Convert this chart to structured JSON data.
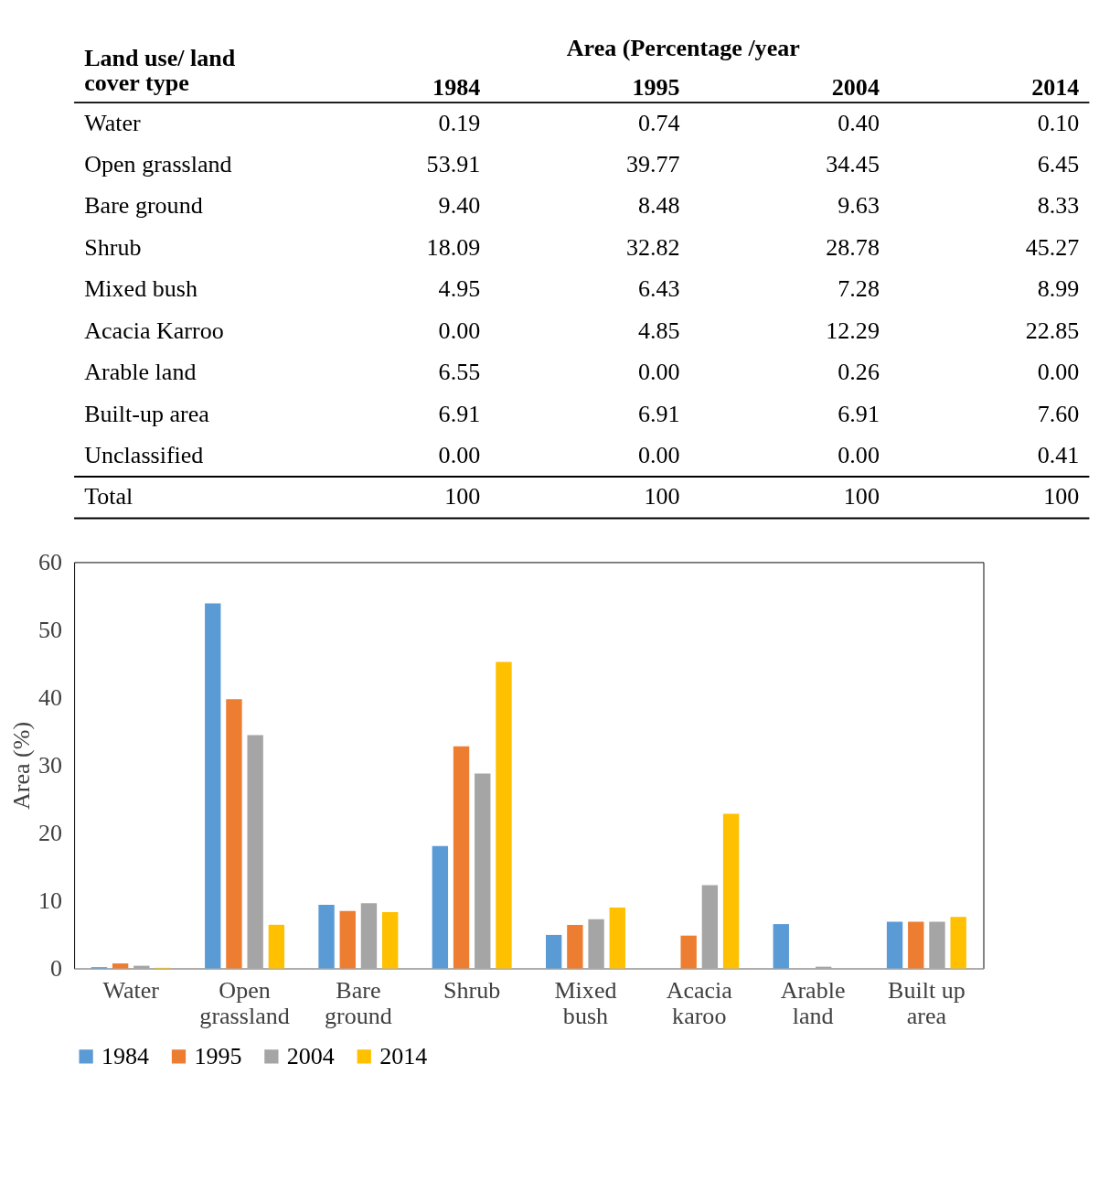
{
  "chart_data": [
    {
      "type": "other",
      "title": "Area (Percentage /year",
      "xlabel": "Land use/ land cover type",
      "categories": [
        "Water",
        "Open grassland",
        "Bare ground",
        "Shrub",
        "Mixed bush",
        "Acacia Karroo",
        "Arable land",
        "Built-up area",
        "Unclassified",
        "Total"
      ],
      "series": [
        {
          "name": "1984",
          "values": [
            0.19,
            53.91,
            9.4,
            18.09,
            4.95,
            0.0,
            6.55,
            6.91,
            0.0,
            100
          ],
          "value_labels": [
            "0.19",
            "53.91",
            "9.40",
            "18.09",
            "4.95",
            "0.00",
            "6.55",
            "6.91",
            "0.00",
            "100"
          ]
        },
        {
          "name": "1995",
          "values": [
            0.74,
            39.77,
            8.48,
            32.82,
            6.43,
            4.85,
            0.0,
            6.91,
            0.0,
            100
          ],
          "value_labels": [
            "0.74",
            "39.77",
            "8.48",
            "32.82",
            "6.43",
            "4.85",
            "0.00",
            "6.91",
            "0.00",
            "100"
          ]
        },
        {
          "name": "2004",
          "values": [
            0.4,
            34.45,
            9.63,
            28.78,
            7.28,
            12.29,
            0.26,
            6.91,
            0.0,
            100
          ],
          "value_labels": [
            "0.40",
            "34.45",
            "9.63",
            "28.78",
            "7.28",
            "12.29",
            "0.26",
            "6.91",
            "0.00",
            "100"
          ]
        },
        {
          "name": "2014",
          "values": [
            0.1,
            6.45,
            8.33,
            45.27,
            8.99,
            22.85,
            0.0,
            7.6,
            0.41,
            100
          ],
          "value_labels": [
            "0.10",
            "6.45",
            "8.33",
            "45.27",
            "8.99",
            "22.85",
            "0.00",
            "7.60",
            "0.41",
            "100"
          ]
        }
      ]
    },
    {
      "type": "bar",
      "ylabel": "Area (%)",
      "ylim": [
        0,
        60
      ],
      "yticks": [
        0,
        10,
        20,
        30,
        40,
        50,
        60
      ],
      "grid": false,
      "legend": "bottom",
      "categories": [
        "Water",
        "Open grassland",
        "Bare ground",
        "Shrub",
        "Mixed bush",
        "Acacia karoo",
        "Arable land",
        "Built up area"
      ],
      "series": [
        {
          "name": "1984",
          "color": "#5b9bd5",
          "values": [
            0.19,
            53.91,
            9.4,
            18.09,
            4.95,
            0.0,
            6.55,
            6.91
          ]
        },
        {
          "name": "1995",
          "color": "#ed7d31",
          "values": [
            0.74,
            39.77,
            8.48,
            32.82,
            6.43,
            4.85,
            0.0,
            6.91
          ]
        },
        {
          "name": "2004",
          "color": "#a5a5a5",
          "values": [
            0.4,
            34.45,
            9.63,
            28.78,
            7.28,
            12.29,
            0.26,
            6.91
          ]
        },
        {
          "name": "2014",
          "color": "#ffc000",
          "values": [
            0.1,
            6.45,
            8.33,
            45.27,
            8.99,
            22.85,
            0.0,
            7.6
          ]
        }
      ]
    }
  ]
}
